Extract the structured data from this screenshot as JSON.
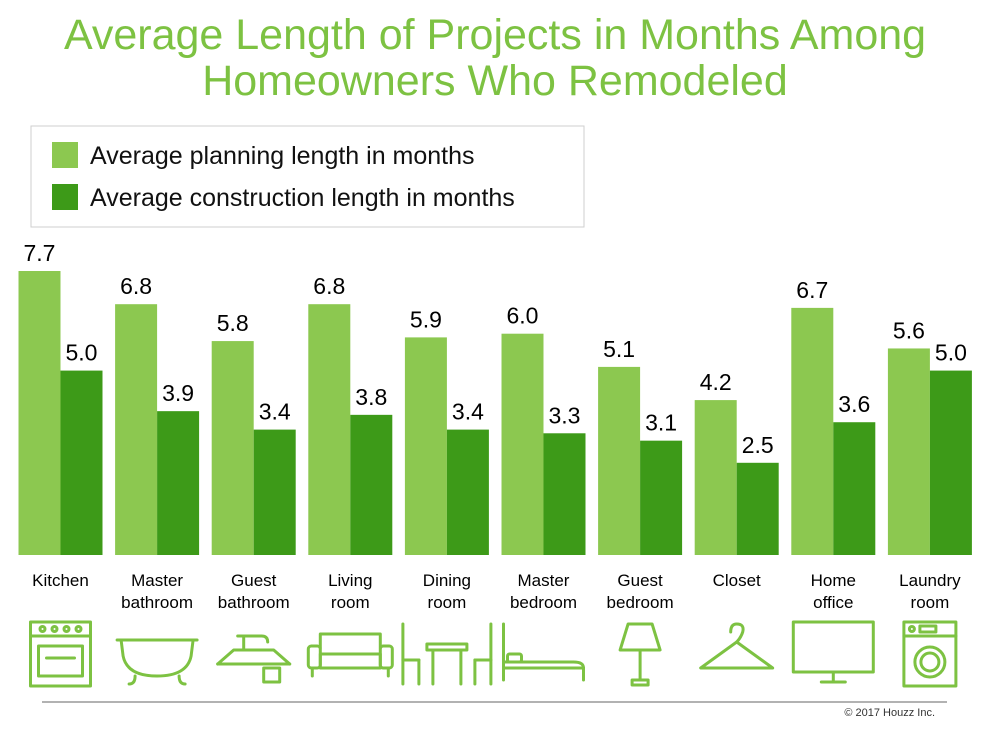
{
  "title_lines": [
    "Average Length of Projects in Months Among",
    "Homeowners Who Remodeled"
  ],
  "copyright": "© 2017 Houzz Inc.",
  "colors": {
    "title": "#7dc242",
    "planning": "#8cc850",
    "construction": "#3d9a18",
    "icon": "#7dc242",
    "text": "#000000"
  },
  "chart_data": {
    "type": "bar",
    "title": "Average Length of Projects in Months Among Homeowners Who Remodeled",
    "categories": [
      [
        "Kitchen"
      ],
      [
        "Master",
        "bathroom"
      ],
      [
        "Guest",
        "bathroom"
      ],
      [
        "Living",
        "room"
      ],
      [
        "Dining",
        "room"
      ],
      [
        "Master",
        "bedroom"
      ],
      [
        "Guest",
        "bedroom"
      ],
      [
        "Closet"
      ],
      [
        "Home",
        "office"
      ],
      [
        "Laundry",
        "room"
      ]
    ],
    "category_icons": [
      "oven-icon",
      "bathtub-icon",
      "sink-icon",
      "sofa-icon",
      "dining-set-icon",
      "bed-icon",
      "lamp-icon",
      "hanger-icon",
      "monitor-icon",
      "washing-machine-icon"
    ],
    "series": [
      {
        "name": "Average planning length in months",
        "values": [
          7.7,
          6.8,
          5.8,
          6.8,
          5.9,
          6.0,
          5.1,
          4.2,
          6.7,
          5.6
        ]
      },
      {
        "name": "Average construction length in months",
        "values": [
          5.0,
          3.9,
          3.4,
          3.8,
          3.4,
          3.3,
          3.1,
          2.5,
          3.6,
          5.0
        ]
      }
    ],
    "value_labels": [
      [
        "7.7",
        "6.8",
        "5.8",
        "6.8",
        "5.9",
        "6.0",
        "5.1",
        "4.2",
        "6.7",
        "5.6"
      ],
      [
        "5.0",
        "3.9",
        "3.4",
        "3.8",
        "3.4",
        "3.3",
        "3.1",
        "2.5",
        "3.6",
        "5.0"
      ]
    ],
    "ylim": [
      0,
      7.7
    ],
    "grid": false,
    "legend": "top-left"
  }
}
